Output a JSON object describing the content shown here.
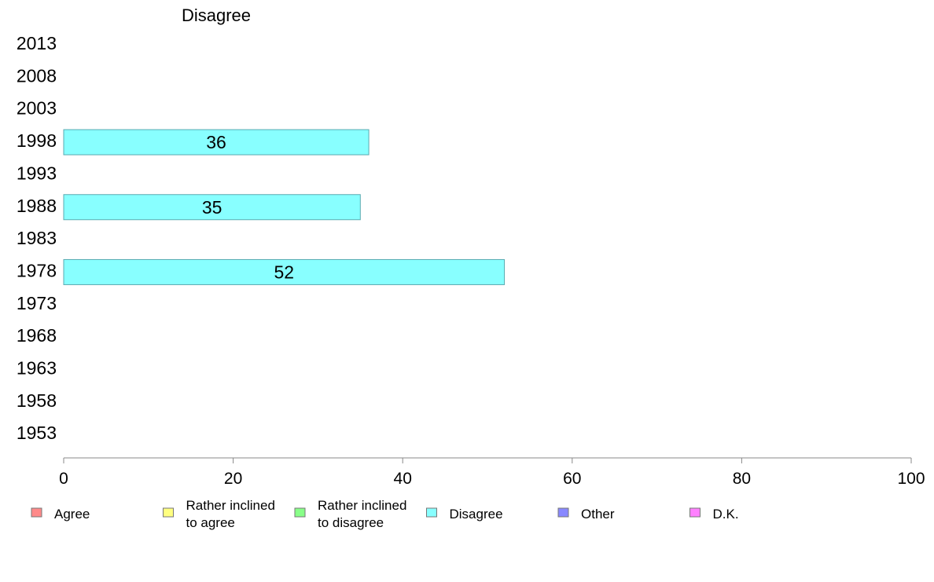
{
  "chart_data": {
    "type": "bar",
    "orientation": "horizontal",
    "title": "Disagree",
    "categories": [
      "2013",
      "2008",
      "2003",
      "1998",
      "1993",
      "1988",
      "1983",
      "1978",
      "1973",
      "1968",
      "1963",
      "1958",
      "1953"
    ],
    "series": [
      {
        "name": "Disagree",
        "values": [
          null,
          null,
          null,
          36,
          null,
          35,
          null,
          52,
          null,
          null,
          null,
          null,
          null
        ]
      }
    ],
    "xlim": [
      0,
      100
    ],
    "xticks": [
      0,
      20,
      40,
      60,
      80,
      100
    ],
    "grid": false,
    "legend_position": "bottom",
    "legend": [
      {
        "label": "Agree",
        "color": "#ff8a8a"
      },
      {
        "label": "Rather inclined to agree",
        "color": "#ffff80"
      },
      {
        "label": "Rather inclined to disagree",
        "color": "#88ff88"
      },
      {
        "label": "Disagree",
        "color": "#88ffff"
      },
      {
        "label": "Other",
        "color": "#8888ff"
      },
      {
        "label": "D.K.",
        "color": "#ff80ff"
      }
    ],
    "bar_color": "#88ffff"
  }
}
